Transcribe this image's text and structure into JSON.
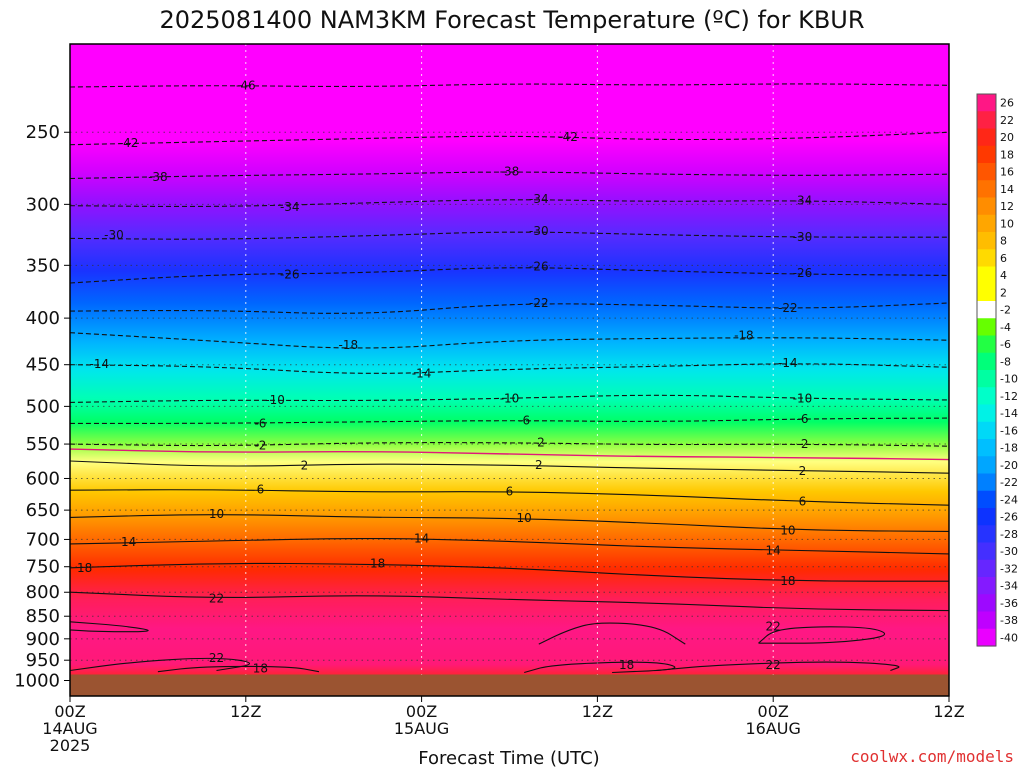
{
  "chart_data": {
    "type": "heatmap",
    "title": "2025081400 NAM3KM Forecast Temperature (ºC) for KBUR",
    "xlabel": "Forecast Time (UTC)",
    "ylabel": "",
    "x_ticks": [
      {
        "hours": 0,
        "line1": "00Z",
        "line2": "14AUG",
        "line3": "2025"
      },
      {
        "hours": 12,
        "line1": "12Z",
        "line2": "",
        "line3": ""
      },
      {
        "hours": 24,
        "line1": "00Z",
        "line2": "15AUG",
        "line3": ""
      },
      {
        "hours": 36,
        "line1": "12Z",
        "line2": "",
        "line3": ""
      },
      {
        "hours": 48,
        "line1": "00Z",
        "line2": "16AUG",
        "line3": ""
      },
      {
        "hours": 60,
        "line1": "12Z",
        "line2": "",
        "line3": ""
      }
    ],
    "x_range_hours": [
      0,
      60
    ],
    "y_axis": "pressure (hPa), log scale, inverted",
    "y_ticks": [
      250,
      300,
      350,
      400,
      450,
      500,
      550,
      600,
      650,
      700,
      750,
      800,
      850,
      900,
      950,
      1000
    ],
    "y_range": [
      200,
      1040
    ],
    "surface_pressure": 985,
    "ground_color": "#9b5431",
    "colorbar_ticks": [
      26,
      22,
      20,
      18,
      16,
      14,
      12,
      10,
      8,
      6,
      4,
      2,
      -2,
      -4,
      -6,
      -8,
      -10,
      -12,
      -14,
      -16,
      -18,
      -20,
      -22,
      -24,
      -26,
      -28,
      -30,
      -32,
      -34,
      -36,
      -38,
      -40
    ],
    "colorbar_colors": [
      {
        "value": 26,
        "color": "#ff1493"
      },
      {
        "value": 22,
        "color": "#ff1e5a"
      },
      {
        "value": 18,
        "color": "#ff2a00"
      },
      {
        "value": 14,
        "color": "#ff6400"
      },
      {
        "value": 10,
        "color": "#ff9a00"
      },
      {
        "value": 6,
        "color": "#ffc800"
      },
      {
        "value": 3,
        "color": "#ffff00"
      },
      {
        "value": 1,
        "color": "#ffffff"
      },
      {
        "value": -3,
        "color": "#66ff00"
      },
      {
        "value": -6,
        "color": "#00ff66"
      },
      {
        "value": -12,
        "color": "#00ffdd"
      },
      {
        "value": -16,
        "color": "#00ccff"
      },
      {
        "value": -20,
        "color": "#0099ff"
      },
      {
        "value": -24,
        "color": "#0033ff"
      },
      {
        "value": -28,
        "color": "#3333ff"
      },
      {
        "value": -32,
        "color": "#7722ff"
      },
      {
        "value": -36,
        "color": "#aa00ff"
      },
      {
        "value": -40,
        "color": "#ff00ff"
      }
    ],
    "temperature_profile": [
      {
        "p": 200,
        "t": -52
      },
      {
        "p": 230,
        "t": -46
      },
      {
        "p": 255,
        "t": -42
      },
      {
        "p": 275,
        "t": -38
      },
      {
        "p": 300,
        "t": -34
      },
      {
        "p": 325,
        "t": -30
      },
      {
        "p": 355,
        "t": -26
      },
      {
        "p": 385,
        "t": -22
      },
      {
        "p": 425,
        "t": -18
      },
      {
        "p": 455,
        "t": -14
      },
      {
        "p": 490,
        "t": -10
      },
      {
        "p": 520,
        "t": -6
      },
      {
        "p": 550,
        "t": -2
      },
      {
        "p": 575,
        "t": 2
      },
      {
        "p": 620,
        "t": 6
      },
      {
        "p": 660,
        "t": 10
      },
      {
        "p": 705,
        "t": 14
      },
      {
        "p": 755,
        "t": 18
      },
      {
        "p": 815,
        "t": 22
      },
      {
        "p": 880,
        "t": 25
      },
      {
        "p": 960,
        "t": 24
      },
      {
        "p": 990,
        "t": 20
      }
    ],
    "contours": [
      {
        "label": "-46",
        "style": "dashed",
        "pts": [
          [
            0,
            223
          ],
          [
            10,
            222
          ],
          [
            20,
            223
          ],
          [
            30,
            221
          ],
          [
            40,
            222
          ],
          [
            50,
            221
          ],
          [
            60,
            222
          ]
        ],
        "labels": [
          [
            12,
            222
          ]
        ]
      },
      {
        "label": "-42",
        "style": "dashed",
        "pts": [
          [
            0,
            258
          ],
          [
            10,
            256
          ],
          [
            20,
            254
          ],
          [
            30,
            252
          ],
          [
            40,
            255
          ],
          [
            50,
            254
          ],
          [
            60,
            250
          ]
        ],
        "labels": [
          [
            4,
            257
          ],
          [
            34,
            253
          ]
        ]
      },
      {
        "label": "-38",
        "style": "dashed",
        "pts": [
          [
            0,
            281
          ],
          [
            10,
            279
          ],
          [
            20,
            278
          ],
          [
            30,
            276
          ],
          [
            40,
            278
          ],
          [
            50,
            279
          ],
          [
            60,
            278
          ]
        ],
        "labels": [
          [
            6,
            280
          ],
          [
            30,
            276
          ]
        ]
      },
      {
        "label": "-34",
        "style": "dashed",
        "pts": [
          [
            0,
            301
          ],
          [
            10,
            302
          ],
          [
            20,
            299
          ],
          [
            30,
            296
          ],
          [
            40,
            298
          ],
          [
            50,
            297
          ],
          [
            60,
            300
          ]
        ],
        "labels": [
          [
            15,
            302
          ],
          [
            32,
            296
          ],
          [
            50,
            297
          ]
        ]
      },
      {
        "label": "-30",
        "style": "dashed",
        "pts": [
          [
            0,
            327
          ],
          [
            10,
            328
          ],
          [
            20,
            325
          ],
          [
            30,
            321
          ],
          [
            40,
            324
          ],
          [
            50,
            326
          ],
          [
            60,
            326
          ]
        ],
        "labels": [
          [
            3,
            324
          ],
          [
            32,
            321
          ],
          [
            50,
            326
          ]
        ]
      },
      {
        "label": "-26",
        "style": "dashed",
        "pts": [
          [
            0,
            366
          ],
          [
            10,
            358
          ],
          [
            20,
            357
          ],
          [
            30,
            351
          ],
          [
            40,
            355
          ],
          [
            50,
            358
          ],
          [
            60,
            359
          ]
        ],
        "labels": [
          [
            15,
            358
          ],
          [
            32,
            351
          ],
          [
            50,
            357
          ]
        ]
      },
      {
        "label": "-22",
        "style": "dashed",
        "pts": [
          [
            0,
            393
          ],
          [
            10,
            392
          ],
          [
            20,
            397
          ],
          [
            30,
            385
          ],
          [
            40,
            387
          ],
          [
            50,
            391
          ],
          [
            60,
            385
          ]
        ],
        "labels": [
          [
            32,
            385
          ],
          [
            49,
            390
          ]
        ]
      },
      {
        "label": "-18",
        "style": "dashed",
        "pts": [
          [
            0,
            415
          ],
          [
            10,
            424
          ],
          [
            20,
            434
          ],
          [
            30,
            423
          ],
          [
            40,
            421
          ],
          [
            50,
            420
          ],
          [
            60,
            423
          ]
        ],
        "labels": [
          [
            19,
            428
          ],
          [
            46,
            418
          ]
        ]
      },
      {
        "label": "-14",
        "style": "dashed",
        "pts": [
          [
            0,
            450
          ],
          [
            10,
            452
          ],
          [
            20,
            462
          ],
          [
            30,
            455
          ],
          [
            40,
            452
          ],
          [
            50,
            448
          ],
          [
            60,
            453
          ]
        ],
        "labels": [
          [
            2,
            449
          ],
          [
            24,
            460
          ],
          [
            49,
            448
          ]
        ]
      },
      {
        "label": "-10",
        "style": "dashed",
        "pts": [
          [
            0,
            495
          ],
          [
            10,
            492
          ],
          [
            20,
            493
          ],
          [
            30,
            490
          ],
          [
            40,
            485
          ],
          [
            50,
            490
          ],
          [
            60,
            492
          ]
        ],
        "labels": [
          [
            14,
            492
          ],
          [
            30,
            490
          ],
          [
            50,
            490
          ]
        ]
      },
      {
        "label": "-6",
        "style": "dashed",
        "pts": [
          [
            0,
            522
          ],
          [
            10,
            522
          ],
          [
            20,
            520
          ],
          [
            30,
            518
          ],
          [
            40,
            520
          ],
          [
            50,
            516
          ],
          [
            60,
            515
          ]
        ],
        "labels": [
          [
            13,
            522
          ],
          [
            31,
            518
          ],
          [
            50,
            516
          ]
        ]
      },
      {
        "label": "-2",
        "style": "dashed",
        "pts": [
          [
            0,
            550
          ],
          [
            10,
            553
          ],
          [
            20,
            548
          ],
          [
            30,
            548
          ],
          [
            40,
            551
          ],
          [
            50,
            550
          ],
          [
            60,
            553
          ]
        ],
        "labels": [
          [
            13,
            552
          ],
          [
            32,
            548
          ],
          [
            50,
            550
          ]
        ]
      },
      {
        "label": "0",
        "style": "zero",
        "pts": [
          [
            0,
            557
          ],
          [
            10,
            562
          ],
          [
            20,
            560
          ],
          [
            30,
            564
          ],
          [
            40,
            568
          ],
          [
            50,
            569
          ],
          [
            60,
            572
          ]
        ],
        "labels": []
      },
      {
        "label": "2",
        "style": "solid",
        "pts": [
          [
            0,
            574
          ],
          [
            10,
            583
          ],
          [
            20,
            578
          ],
          [
            30,
            580
          ],
          [
            40,
            585
          ],
          [
            50,
            588
          ],
          [
            60,
            592
          ]
        ],
        "labels": [
          [
            16,
            581
          ],
          [
            32,
            580
          ],
          [
            50,
            589
          ]
        ]
      },
      {
        "label": "6",
        "style": "solid",
        "pts": [
          [
            0,
            618
          ],
          [
            10,
            617
          ],
          [
            20,
            621
          ],
          [
            30,
            620
          ],
          [
            40,
            626
          ],
          [
            50,
            636
          ],
          [
            60,
            642
          ]
        ],
        "labels": [
          [
            13,
            617
          ],
          [
            30,
            620
          ],
          [
            50,
            636
          ]
        ]
      },
      {
        "label": "10",
        "style": "solid",
        "pts": [
          [
            0,
            662
          ],
          [
            10,
            656
          ],
          [
            20,
            662
          ],
          [
            30,
            663
          ],
          [
            40,
            672
          ],
          [
            50,
            684
          ],
          [
            60,
            686
          ]
        ],
        "labels": [
          [
            10,
            656
          ],
          [
            31,
            663
          ],
          [
            49,
            684
          ]
        ]
      },
      {
        "label": "14",
        "style": "solid",
        "pts": [
          [
            0,
            708
          ],
          [
            10,
            703
          ],
          [
            20,
            697
          ],
          [
            30,
            703
          ],
          [
            40,
            714
          ],
          [
            50,
            720
          ],
          [
            60,
            726
          ]
        ],
        "labels": [
          [
            4,
            705
          ],
          [
            24,
            698
          ],
          [
            48,
            720
          ]
        ]
      },
      {
        "label": "18",
        "style": "solid",
        "pts": [
          [
            0,
            752
          ],
          [
            10,
            743
          ],
          [
            20,
            745
          ],
          [
            30,
            752
          ],
          [
            40,
            768
          ],
          [
            50,
            778
          ],
          [
            60,
            778
          ]
        ],
        "labels": [
          [
            1,
            752
          ],
          [
            21,
            744
          ],
          [
            49,
            778
          ]
        ]
      },
      {
        "label": "22",
        "style": "solid",
        "pts": [
          [
            0,
            800
          ],
          [
            10,
            813
          ],
          [
            20,
            805
          ],
          [
            30,
            815
          ],
          [
            40,
            822
          ],
          [
            50,
            835
          ],
          [
            60,
            838
          ]
        ],
        "labels": [
          [
            10,
            813
          ]
        ]
      }
    ],
    "closed_contours": [
      {
        "label": "",
        "style": "solid",
        "pts": [
          [
            0,
            862
          ],
          [
            4,
            872
          ],
          [
            6,
            884
          ],
          [
            2,
            884
          ],
          [
            0,
            880
          ]
        ],
        "labels": []
      },
      {
        "label": "22",
        "style": "solid",
        "pts": [
          [
            47,
            910
          ],
          [
            48,
            880
          ],
          [
            51,
            872
          ],
          [
            55,
            875
          ],
          [
            56,
            895
          ],
          [
            52,
            910
          ],
          [
            47,
            910
          ]
        ],
        "labels": [
          [
            48,
            872
          ]
        ]
      },
      {
        "label": "22",
        "style": "solid",
        "pts": [
          [
            0,
            975
          ],
          [
            4,
            955
          ],
          [
            10,
            942
          ],
          [
            13,
            958
          ],
          [
            10,
            975
          ]
        ],
        "labels": [
          [
            10,
            945
          ]
        ]
      },
      {
        "label": "18",
        "style": "solid",
        "pts": [
          [
            6,
            978
          ],
          [
            9,
            965
          ],
          [
            15,
            965
          ],
          [
            17,
            978
          ]
        ],
        "labels": [
          [
            13,
            970
          ]
        ]
      },
      {
        "label": "18",
        "style": "solid",
        "pts": [
          [
            31,
            980
          ],
          [
            33,
            960
          ],
          [
            40,
            952
          ],
          [
            42,
            972
          ],
          [
            37,
            980
          ]
        ],
        "labels": [
          [
            38,
            962
          ]
        ]
      },
      {
        "label": "22",
        "style": "solid",
        "pts": [
          [
            40,
            975
          ],
          [
            44,
            962
          ],
          [
            52,
            952
          ],
          [
            57,
            962
          ],
          [
            56,
            975
          ]
        ],
        "labels": [
          [
            48,
            962
          ]
        ]
      },
      {
        "label": "",
        "style": "solid",
        "pts": [
          [
            32,
            912
          ],
          [
            34,
            880
          ],
          [
            36,
            862
          ],
          [
            40,
            870
          ],
          [
            42,
            912
          ]
        ],
        "labels": []
      }
    ]
  },
  "credit": "coolwx.com/models"
}
